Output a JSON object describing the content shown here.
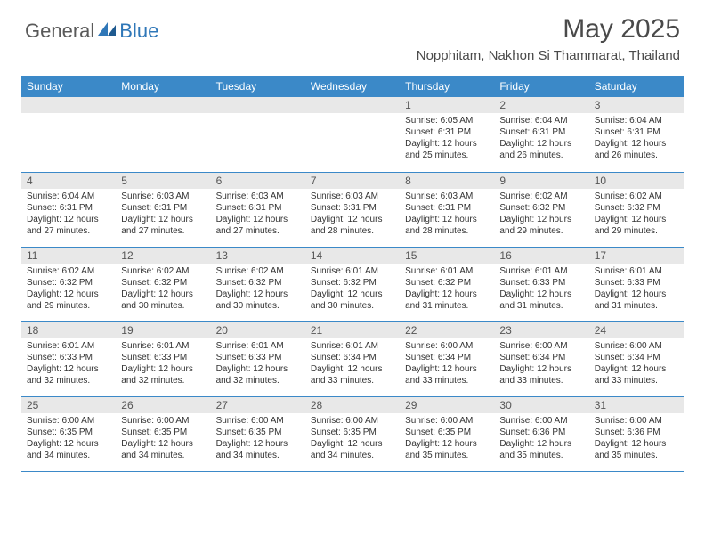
{
  "logo": {
    "text1": "General",
    "text2": "Blue"
  },
  "title": "May 2025",
  "location": "Nopphitam, Nakhon Si Thammarat, Thailand",
  "colors": {
    "header_bg": "#3b89c8",
    "header_text": "#ffffff",
    "daynum_bg": "#e8e8e8",
    "border": "#3b89c8",
    "logo_gray": "#5a5a5a",
    "logo_blue": "#2f77b8",
    "body_text": "#333333"
  },
  "weekdays": [
    "Sunday",
    "Monday",
    "Tuesday",
    "Wednesday",
    "Thursday",
    "Friday",
    "Saturday"
  ],
  "first_day_index": 4,
  "days": [
    {
      "n": 1,
      "sunrise": "6:05 AM",
      "sunset": "6:31 PM",
      "daylight": "12 hours and 25 minutes."
    },
    {
      "n": 2,
      "sunrise": "6:04 AM",
      "sunset": "6:31 PM",
      "daylight": "12 hours and 26 minutes."
    },
    {
      "n": 3,
      "sunrise": "6:04 AM",
      "sunset": "6:31 PM",
      "daylight": "12 hours and 26 minutes."
    },
    {
      "n": 4,
      "sunrise": "6:04 AM",
      "sunset": "6:31 PM",
      "daylight": "12 hours and 27 minutes."
    },
    {
      "n": 5,
      "sunrise": "6:03 AM",
      "sunset": "6:31 PM",
      "daylight": "12 hours and 27 minutes."
    },
    {
      "n": 6,
      "sunrise": "6:03 AM",
      "sunset": "6:31 PM",
      "daylight": "12 hours and 27 minutes."
    },
    {
      "n": 7,
      "sunrise": "6:03 AM",
      "sunset": "6:31 PM",
      "daylight": "12 hours and 28 minutes."
    },
    {
      "n": 8,
      "sunrise": "6:03 AM",
      "sunset": "6:31 PM",
      "daylight": "12 hours and 28 minutes."
    },
    {
      "n": 9,
      "sunrise": "6:02 AM",
      "sunset": "6:32 PM",
      "daylight": "12 hours and 29 minutes."
    },
    {
      "n": 10,
      "sunrise": "6:02 AM",
      "sunset": "6:32 PM",
      "daylight": "12 hours and 29 minutes."
    },
    {
      "n": 11,
      "sunrise": "6:02 AM",
      "sunset": "6:32 PM",
      "daylight": "12 hours and 29 minutes."
    },
    {
      "n": 12,
      "sunrise": "6:02 AM",
      "sunset": "6:32 PM",
      "daylight": "12 hours and 30 minutes."
    },
    {
      "n": 13,
      "sunrise": "6:02 AM",
      "sunset": "6:32 PM",
      "daylight": "12 hours and 30 minutes."
    },
    {
      "n": 14,
      "sunrise": "6:01 AM",
      "sunset": "6:32 PM",
      "daylight": "12 hours and 30 minutes."
    },
    {
      "n": 15,
      "sunrise": "6:01 AM",
      "sunset": "6:32 PM",
      "daylight": "12 hours and 31 minutes."
    },
    {
      "n": 16,
      "sunrise": "6:01 AM",
      "sunset": "6:33 PM",
      "daylight": "12 hours and 31 minutes."
    },
    {
      "n": 17,
      "sunrise": "6:01 AM",
      "sunset": "6:33 PM",
      "daylight": "12 hours and 31 minutes."
    },
    {
      "n": 18,
      "sunrise": "6:01 AM",
      "sunset": "6:33 PM",
      "daylight": "12 hours and 32 minutes."
    },
    {
      "n": 19,
      "sunrise": "6:01 AM",
      "sunset": "6:33 PM",
      "daylight": "12 hours and 32 minutes."
    },
    {
      "n": 20,
      "sunrise": "6:01 AM",
      "sunset": "6:33 PM",
      "daylight": "12 hours and 32 minutes."
    },
    {
      "n": 21,
      "sunrise": "6:01 AM",
      "sunset": "6:34 PM",
      "daylight": "12 hours and 33 minutes."
    },
    {
      "n": 22,
      "sunrise": "6:00 AM",
      "sunset": "6:34 PM",
      "daylight": "12 hours and 33 minutes."
    },
    {
      "n": 23,
      "sunrise": "6:00 AM",
      "sunset": "6:34 PM",
      "daylight": "12 hours and 33 minutes."
    },
    {
      "n": 24,
      "sunrise": "6:00 AM",
      "sunset": "6:34 PM",
      "daylight": "12 hours and 33 minutes."
    },
    {
      "n": 25,
      "sunrise": "6:00 AM",
      "sunset": "6:35 PM",
      "daylight": "12 hours and 34 minutes."
    },
    {
      "n": 26,
      "sunrise": "6:00 AM",
      "sunset": "6:35 PM",
      "daylight": "12 hours and 34 minutes."
    },
    {
      "n": 27,
      "sunrise": "6:00 AM",
      "sunset": "6:35 PM",
      "daylight": "12 hours and 34 minutes."
    },
    {
      "n": 28,
      "sunrise": "6:00 AM",
      "sunset": "6:35 PM",
      "daylight": "12 hours and 34 minutes."
    },
    {
      "n": 29,
      "sunrise": "6:00 AM",
      "sunset": "6:35 PM",
      "daylight": "12 hours and 35 minutes."
    },
    {
      "n": 30,
      "sunrise": "6:00 AM",
      "sunset": "6:36 PM",
      "daylight": "12 hours and 35 minutes."
    },
    {
      "n": 31,
      "sunrise": "6:00 AM",
      "sunset": "6:36 PM",
      "daylight": "12 hours and 35 minutes."
    }
  ],
  "labels": {
    "sunrise": "Sunrise: ",
    "sunset": "Sunset: ",
    "daylight": "Daylight: "
  }
}
